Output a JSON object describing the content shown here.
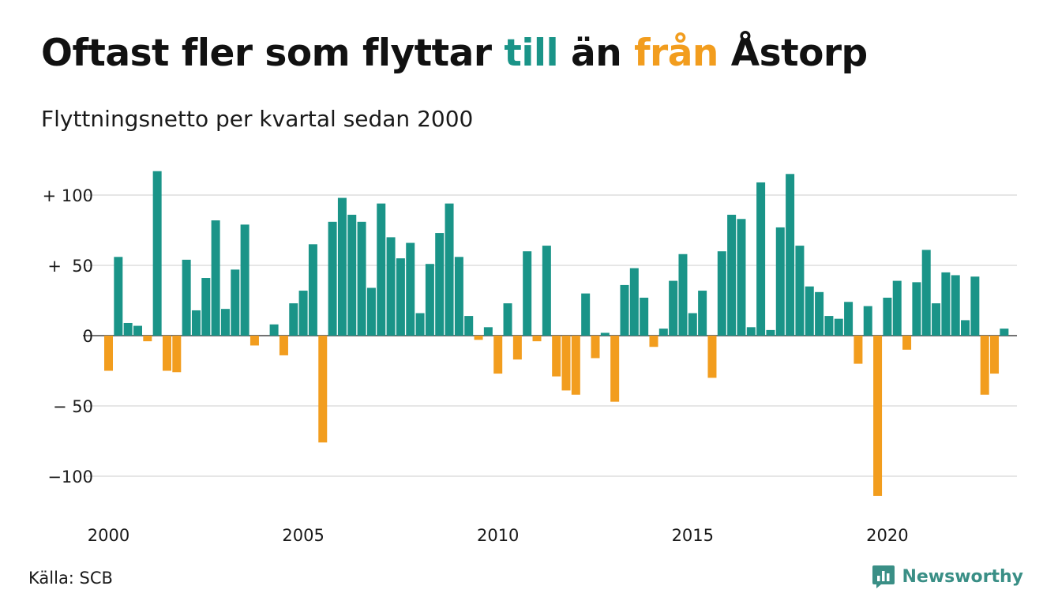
{
  "title": {
    "part1": "Oftast fler som flyttar ",
    "highlight_in": "till",
    "part2": " än ",
    "highlight_out": "från",
    "part3": " Åstorp"
  },
  "subtitle": "Flyttningsnetto per kvartal sedan 2000",
  "source": "Källa: SCB",
  "brand": {
    "name": "Newsworthy",
    "icon": "bar-chart-speech-icon"
  },
  "colors": {
    "positive": "#1a9488",
    "negative": "#f29d1e",
    "grid": "#dddddd",
    "text": "#111111"
  },
  "chart_data": {
    "type": "bar",
    "frequency": "quarterly",
    "start": "2000 Q1",
    "x_ticks": [
      "2000",
      "2005",
      "2010",
      "2015",
      "2020"
    ],
    "y_ticks": [
      {
        "value": 100,
        "label": "+ 100"
      },
      {
        "value": 50,
        "label": "+  50"
      },
      {
        "value": 0,
        "label": "0"
      },
      {
        "value": -50,
        "label": "− 50"
      },
      {
        "value": -100,
        "label": "−100"
      }
    ],
    "ylim": [
      -118,
      122
    ],
    "grid": true,
    "values": [
      -25,
      56,
      9,
      7,
      -4,
      117,
      -25,
      -26,
      54,
      18,
      41,
      82,
      19,
      47,
      79,
      -7,
      0,
      8,
      -14,
      23,
      32,
      65,
      -76,
      81,
      98,
      86,
      81,
      34,
      94,
      70,
      55,
      66,
      16,
      51,
      73,
      94,
      56,
      14,
      -3,
      6,
      -27,
      23,
      -17,
      60,
      -4,
      64,
      -29,
      -39,
      -42,
      30,
      -16,
      2,
      -47,
      36,
      48,
      27,
      -8,
      5,
      39,
      58,
      16,
      32,
      -30,
      60,
      86,
      83,
      6,
      109,
      4,
      77,
      115,
      64,
      35,
      31,
      14,
      12,
      24,
      -20,
      21,
      -114,
      27,
      39,
      -10,
      38,
      61,
      23,
      45,
      43,
      11,
      42,
      -42,
      -27,
      5
    ]
  }
}
